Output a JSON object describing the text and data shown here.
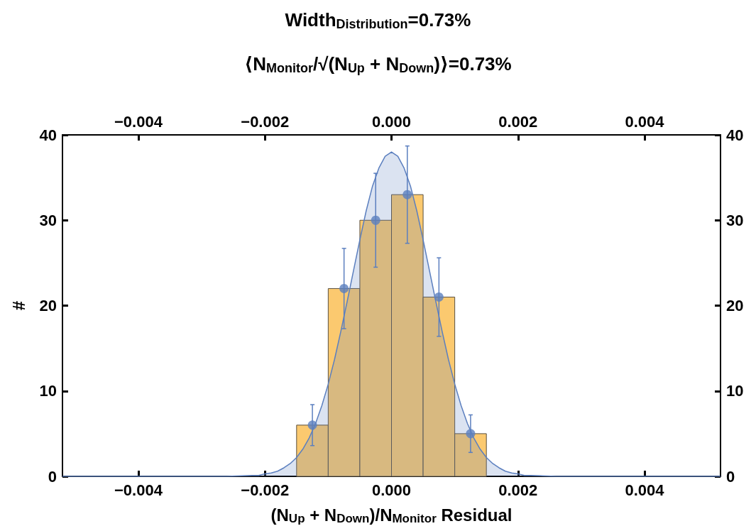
{
  "chart_data": {
    "type": "histogram",
    "title": "Width$_{Distribution}$=0.73%",
    "subtitle": "⟨N$_{Monitor}$/√(N$_{Up}$ + N$_{Down}$)⟩=0.73%",
    "xlabel": "(N$_{Up}$ + N$_{Down}$)/N$_{Monitor}$ Residual",
    "ylabel": "#",
    "bins": [
      -0.0015,
      -0.001,
      -0.0005,
      0,
      0.0005,
      0.001,
      0.0015
    ],
    "values": [
      6,
      22,
      30,
      33,
      21,
      5
    ],
    "color": "#fbc96f",
    "series": [
      {
        "type": "area",
        "color": "#5b7fbf",
        "marker": "none",
        "x": [
          -0.0052,
          -0.0026,
          -0.0022,
          -0.0021,
          -0.002,
          -0.0019,
          -0.0018,
          -0.0017,
          -0.0016,
          -0.0015,
          -0.0014,
          -0.0013,
          -0.0012,
          -0.0011,
          -0.001,
          -0.0009,
          -0.0008,
          -0.0007,
          -0.0006,
          -0.0005,
          -0.0004,
          -0.0003,
          -0.0002,
          -0.0001,
          0,
          0.0001,
          0.0002,
          0.0003,
          0.0004,
          0.0005,
          0.0006,
          0.0007,
          0.0008,
          0.0009,
          0.001,
          0.0011,
          0.0012,
          0.0013,
          0.0014,
          0.0015,
          0.0016,
          0.0017,
          0.0018,
          0.0019,
          0.002,
          0.0021,
          0.0022,
          0.0026,
          0.0052
        ],
        "values": [
          0,
          0,
          0.1,
          0.1,
          0.3,
          0.4,
          0.6,
          1,
          1.5,
          2.2,
          3.2,
          4.5,
          6.2,
          8.3,
          10.8,
          13.7,
          17,
          20.5,
          24.1,
          27.7,
          31.1,
          34,
          36.1,
          37.5,
          38,
          37.5,
          36.1,
          34,
          31.1,
          27.7,
          24.1,
          20.5,
          17,
          13.7,
          10.8,
          8.3,
          6.2,
          4.5,
          3.2,
          2.2,
          1.5,
          1,
          0.6,
          0.4,
          0.3,
          0.1,
          0.1,
          0,
          0
        ]
      },
      {
        "type": "scatter",
        "color": "#5b7fbf",
        "x": [
          -0.00125,
          -0.00075,
          -0.00025,
          0.00025,
          0.00075,
          0.00125
        ],
        "values": [
          6,
          22,
          30,
          33,
          21,
          5
        ],
        "errors": [
          2.4,
          4.7,
          5.5,
          5.7,
          4.6,
          2.2
        ]
      }
    ],
    "xlim": [
      -0.0052,
      0.0052
    ],
    "xticks": [
      {
        "value": -0.004,
        "label": "−0.004"
      },
      {
        "value": -0.002,
        "label": "−0.002"
      },
      {
        "value": 0,
        "label": "0.000"
      },
      {
        "value": 0.002,
        "label": "0.002"
      },
      {
        "value": 0.004,
        "label": "0.004"
      }
    ],
    "x2lim": [
      -0.0052,
      0.0052
    ],
    "x2ticks": [
      {
        "value": -0.004,
        "label": "−0.004"
      },
      {
        "value": -0.002,
        "label": "−0.002"
      },
      {
        "value": 0,
        "label": "0.000"
      },
      {
        "value": 0.002,
        "label": "0.002"
      },
      {
        "value": 0.004,
        "label": "0.004"
      }
    ],
    "ylim": [
      0,
      40
    ],
    "yticks": [
      0,
      10,
      20,
      30,
      40
    ],
    "y2lim": [
      0,
      40
    ],
    "y2ticks": [
      0,
      10,
      20,
      30,
      40
    ],
    "grid": false,
    "marker": "circle"
  }
}
